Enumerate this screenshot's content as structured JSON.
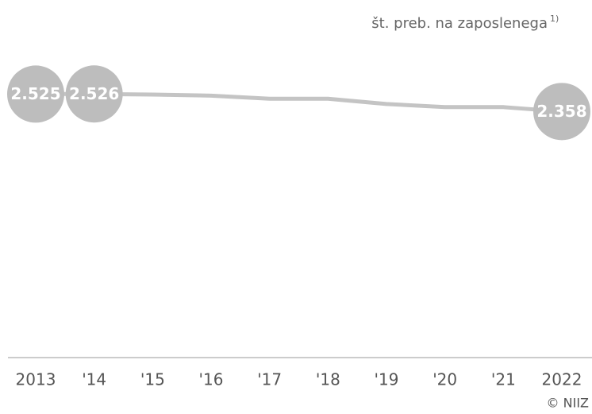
{
  "chart_data": {
    "type": "line",
    "unit_label": "št. preb. na zaposlenega",
    "unit_note": "1)",
    "source": "© NIIZ",
    "categories": [
      "2013",
      "'14",
      "'15",
      "'16",
      "'17",
      "'18",
      "'19",
      "'20",
      "'21",
      "2022"
    ],
    "series": [
      {
        "name": "št. preb. na zaposlenega",
        "color": "#c4c4c4",
        "values": [
          2525,
          2526,
          2520,
          2510,
          2480,
          2480,
          2430,
          2400,
          2400,
          2358
        ],
        "value_labels": [
          "2.525",
          "2.526",
          null,
          null,
          null,
          null,
          null,
          null,
          null,
          "2.358"
        ]
      }
    ],
    "ylim": [
      0,
      3000
    ]
  }
}
